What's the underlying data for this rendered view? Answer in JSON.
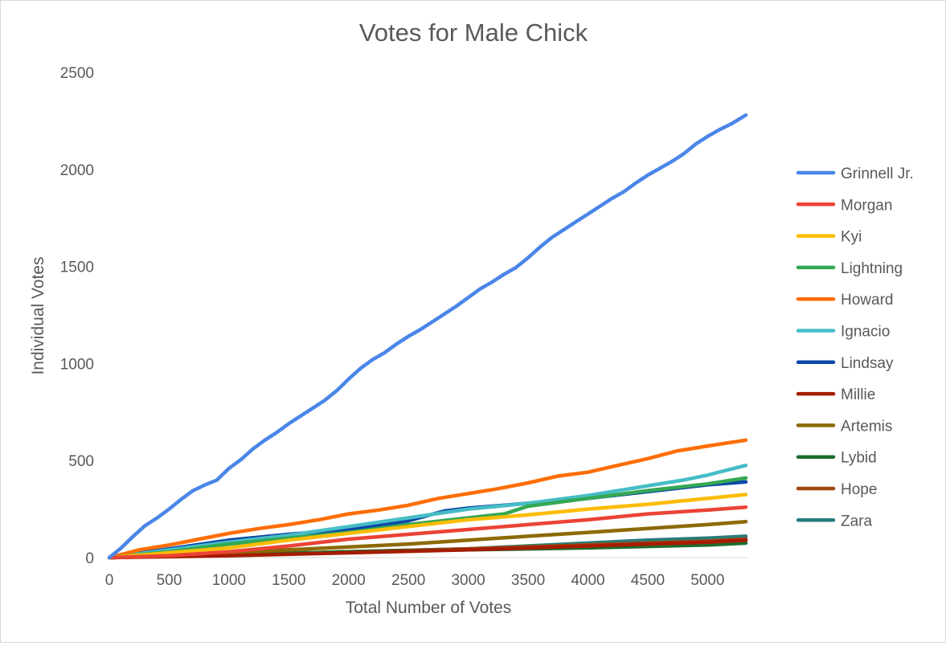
{
  "chart_data": {
    "type": "line",
    "title": "Votes for Male Chick",
    "xlabel": "Total Number of Votes",
    "ylabel": "Individual Votes",
    "xlim": [
      0,
      5340
    ],
    "ylim": [
      0,
      2500
    ],
    "x_ticks": [
      0,
      500,
      1000,
      1500,
      2000,
      2500,
      3000,
      3500,
      4000,
      4500,
      5000
    ],
    "y_ticks": [
      0,
      500,
      1000,
      1500,
      2000,
      2500
    ],
    "grid": false,
    "legend_position": "right",
    "series": [
      {
        "name": "Grinnell Jr.",
        "color": "#4a86e8",
        "points": [
          [
            0,
            0
          ],
          [
            100,
            50
          ],
          [
            200,
            110
          ],
          [
            300,
            165
          ],
          [
            400,
            205
          ],
          [
            500,
            250
          ],
          [
            600,
            300
          ],
          [
            700,
            345
          ],
          [
            800,
            375
          ],
          [
            900,
            400
          ],
          [
            1000,
            460
          ],
          [
            1100,
            505
          ],
          [
            1200,
            560
          ],
          [
            1300,
            605
          ],
          [
            1400,
            645
          ],
          [
            1500,
            690
          ],
          [
            1600,
            730
          ],
          [
            1700,
            770
          ],
          [
            1800,
            810
          ],
          [
            1900,
            860
          ],
          [
            2000,
            920
          ],
          [
            2100,
            975
          ],
          [
            2200,
            1020
          ],
          [
            2300,
            1055
          ],
          [
            2400,
            1100
          ],
          [
            2500,
            1140
          ],
          [
            2600,
            1175
          ],
          [
            2700,
            1215
          ],
          [
            2800,
            1255
          ],
          [
            2900,
            1295
          ],
          [
            3000,
            1340
          ],
          [
            3100,
            1385
          ],
          [
            3200,
            1420
          ],
          [
            3300,
            1460
          ],
          [
            3400,
            1495
          ],
          [
            3500,
            1545
          ],
          [
            3600,
            1600
          ],
          [
            3700,
            1650
          ],
          [
            3800,
            1690
          ],
          [
            3900,
            1730
          ],
          [
            4000,
            1770
          ],
          [
            4100,
            1810
          ],
          [
            4200,
            1850
          ],
          [
            4300,
            1885
          ],
          [
            4400,
            1930
          ],
          [
            4500,
            1970
          ],
          [
            4600,
            2005
          ],
          [
            4700,
            2040
          ],
          [
            4800,
            2080
          ],
          [
            4900,
            2130
          ],
          [
            5000,
            2170
          ],
          [
            5100,
            2205
          ],
          [
            5200,
            2235
          ],
          [
            5320,
            2280
          ]
        ]
      },
      {
        "name": "Morgan",
        "color": "#ea4335",
        "points": [
          [
            0,
            0
          ],
          [
            500,
            10
          ],
          [
            1000,
            30
          ],
          [
            1500,
            60
          ],
          [
            2000,
            95
          ],
          [
            2500,
            120
          ],
          [
            3000,
            145
          ],
          [
            3500,
            170
          ],
          [
            4000,
            195
          ],
          [
            4500,
            225
          ],
          [
            5000,
            245
          ],
          [
            5320,
            260
          ]
        ]
      },
      {
        "name": "Kyi",
        "color": "#fbbc04",
        "points": [
          [
            0,
            0
          ],
          [
            500,
            25
          ],
          [
            1000,
            50
          ],
          [
            1500,
            90
          ],
          [
            2000,
            125
          ],
          [
            2500,
            160
          ],
          [
            3000,
            195
          ],
          [
            3500,
            220
          ],
          [
            4000,
            250
          ],
          [
            4500,
            275
          ],
          [
            5000,
            305
          ],
          [
            5320,
            325
          ]
        ]
      },
      {
        "name": "Lightning",
        "color": "#34a853",
        "points": [
          [
            0,
            0
          ],
          [
            500,
            30
          ],
          [
            1000,
            70
          ],
          [
            1500,
            100
          ],
          [
            2000,
            130
          ],
          [
            2500,
            170
          ],
          [
            3000,
            205
          ],
          [
            3300,
            225
          ],
          [
            3500,
            265
          ],
          [
            4000,
            305
          ],
          [
            4500,
            345
          ],
          [
            5000,
            380
          ],
          [
            5320,
            410
          ]
        ]
      },
      {
        "name": "Howard",
        "color": "#ff6d01",
        "points": [
          [
            0,
            0
          ],
          [
            250,
            40
          ],
          [
            500,
            65
          ],
          [
            750,
            95
          ],
          [
            1000,
            125
          ],
          [
            1250,
            150
          ],
          [
            1500,
            170
          ],
          [
            1750,
            195
          ],
          [
            2000,
            225
          ],
          [
            2250,
            245
          ],
          [
            2500,
            270
          ],
          [
            2750,
            305
          ],
          [
            3000,
            330
          ],
          [
            3250,
            355
          ],
          [
            3500,
            385
          ],
          [
            3750,
            420
          ],
          [
            4000,
            440
          ],
          [
            4250,
            475
          ],
          [
            4500,
            510
          ],
          [
            4750,
            550
          ],
          [
            5000,
            575
          ],
          [
            5320,
            605
          ]
        ]
      },
      {
        "name": "Ignacio",
        "color": "#46bdc6",
        "points": [
          [
            0,
            0
          ],
          [
            500,
            40
          ],
          [
            1000,
            80
          ],
          [
            1500,
            115
          ],
          [
            2000,
            160
          ],
          [
            2500,
            205
          ],
          [
            3000,
            250
          ],
          [
            3500,
            280
          ],
          [
            4000,
            320
          ],
          [
            4500,
            370
          ],
          [
            4800,
            400
          ],
          [
            5000,
            425
          ],
          [
            5320,
            475
          ]
        ]
      },
      {
        "name": "Lindsay",
        "color": "#0b47a8",
        "points": [
          [
            0,
            0
          ],
          [
            500,
            45
          ],
          [
            1000,
            90
          ],
          [
            1500,
            120
          ],
          [
            2000,
            145
          ],
          [
            2500,
            190
          ],
          [
            2800,
            240
          ],
          [
            3000,
            255
          ],
          [
            3500,
            280
          ],
          [
            4000,
            305
          ],
          [
            4500,
            340
          ],
          [
            5000,
            375
          ],
          [
            5320,
            390
          ]
        ]
      },
      {
        "name": "Millie",
        "color": "#a61c00",
        "points": [
          [
            0,
            0
          ],
          [
            1000,
            10
          ],
          [
            2000,
            25
          ],
          [
            3000,
            40
          ],
          [
            4000,
            60
          ],
          [
            5000,
            80
          ],
          [
            5320,
            90
          ]
        ]
      },
      {
        "name": "Artemis",
        "color": "#8c6a06",
        "points": [
          [
            0,
            0
          ],
          [
            500,
            10
          ],
          [
            1000,
            25
          ],
          [
            1500,
            40
          ],
          [
            2000,
            55
          ],
          [
            2500,
            70
          ],
          [
            3000,
            90
          ],
          [
            3500,
            110
          ],
          [
            4000,
            130
          ],
          [
            4500,
            150
          ],
          [
            5000,
            170
          ],
          [
            5320,
            185
          ]
        ]
      },
      {
        "name": "Lybid",
        "color": "#1e6c2e",
        "points": [
          [
            0,
            0
          ],
          [
            1000,
            15
          ],
          [
            2000,
            30
          ],
          [
            3000,
            40
          ],
          [
            4000,
            50
          ],
          [
            5000,
            65
          ],
          [
            5320,
            75
          ]
        ]
      },
      {
        "name": "Hope",
        "color": "#a3470c",
        "points": [
          [
            0,
            0
          ],
          [
            1000,
            15
          ],
          [
            2000,
            30
          ],
          [
            3000,
            45
          ],
          [
            4000,
            65
          ],
          [
            5000,
            85
          ],
          [
            5320,
            95
          ]
        ]
      },
      {
        "name": "Zara",
        "color": "#2a7a7a",
        "points": [
          [
            0,
            0
          ],
          [
            1000,
            15
          ],
          [
            2000,
            30
          ],
          [
            3000,
            45
          ],
          [
            3500,
            60
          ],
          [
            4000,
            75
          ],
          [
            4500,
            90
          ],
          [
            5000,
            100
          ],
          [
            5320,
            110
          ]
        ]
      }
    ]
  }
}
